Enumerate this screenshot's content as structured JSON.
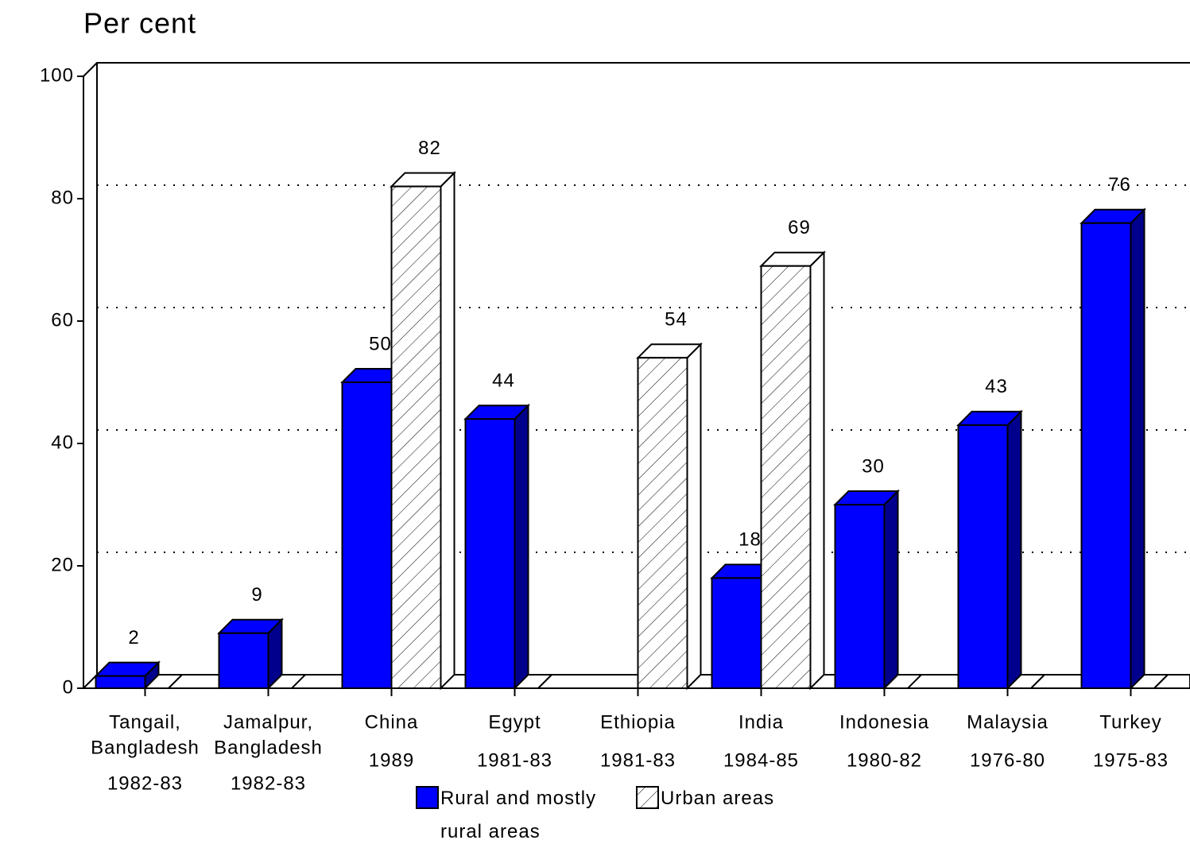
{
  "chart_data": {
    "type": "bar3d",
    "y_label": "Per cent",
    "categories": [
      [
        "Tangail,",
        "Bangladesh",
        "1982-83"
      ],
      [
        "Jamalpur,",
        "Bangladesh",
        "1982-83"
      ],
      [
        "China",
        "1989"
      ],
      [
        "Egypt",
        "1981-83"
      ],
      [
        "Ethiopia",
        "1981-83"
      ],
      [
        "India",
        "1984-85"
      ],
      [
        "Indonesia",
        "1980-82"
      ],
      [
        "Malaysia",
        "1976-80"
      ],
      [
        "Turkey",
        "1975-83"
      ]
    ],
    "series": [
      {
        "name": "Rural and mostly rural areas",
        "color": "#0000ff",
        "values": [
          2,
          9,
          50,
          44,
          null,
          18,
          30,
          43,
          76
        ]
      },
      {
        "name": "Urban areas",
        "color": "#ffffff",
        "hatch": true,
        "values": [
          null,
          null,
          82,
          null,
          54,
          69,
          null,
          null,
          null
        ]
      }
    ],
    "ylim": [
      0,
      100
    ],
    "yticks": [
      0,
      20,
      40,
      60,
      80,
      100
    ],
    "grid": true,
    "legend": "bottom"
  }
}
